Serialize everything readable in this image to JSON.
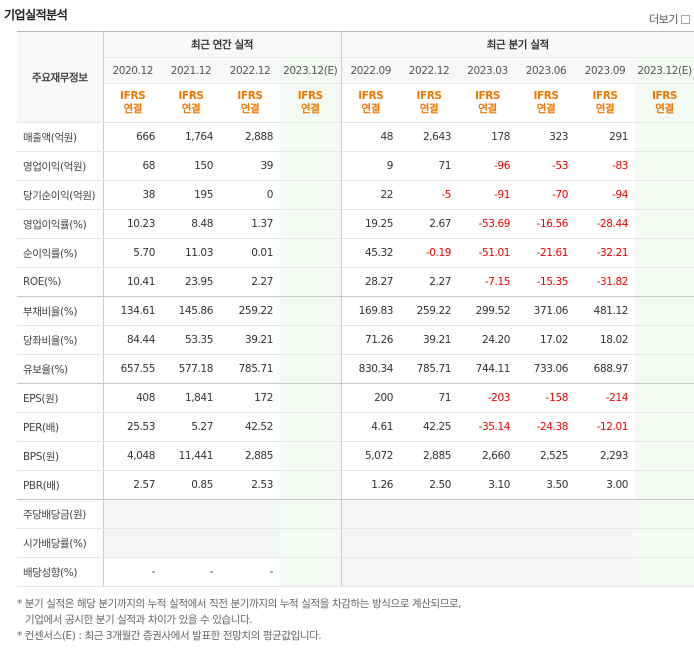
{
  "header": {
    "title": "기업실적분석",
    "more": "더보기"
  },
  "table": {
    "corner": "주요재무정보",
    "groups": [
      "최근 연간 실적",
      "최근 분기 실적"
    ],
    "periods": [
      "2020.12",
      "2021.12",
      "2022.12",
      "2023.12(E)",
      "2022.09",
      "2022.12",
      "2023.03",
      "2023.06",
      "2023.09",
      "2023.12(E)"
    ],
    "standards": [
      [
        "IFRS",
        "연결"
      ],
      [
        "IFRS",
        "연결"
      ],
      [
        "IFRS",
        "연결"
      ],
      [
        "IFRS",
        "연결"
      ],
      [
        "IFRS",
        "연결"
      ],
      [
        "IFRS",
        "연결"
      ],
      [
        "IFRS",
        "연결"
      ],
      [
        "IFRS",
        "연결"
      ],
      [
        "IFRS",
        "연결"
      ],
      [
        "IFRS",
        "연결"
      ]
    ],
    "rows": [
      {
        "label": "매출액(억원)",
        "values": [
          "666",
          "1,764",
          "2,888",
          null,
          "48",
          "2,643",
          "178",
          "323",
          "291",
          null
        ]
      },
      {
        "label": "영업이익(억원)",
        "values": [
          "68",
          "150",
          "39",
          null,
          "9",
          "71",
          "-96",
          "-53",
          "-83",
          null
        ]
      },
      {
        "label": "당기순이익(억원)",
        "values": [
          "38",
          "195",
          "0",
          null,
          "22",
          "-5",
          "-91",
          "-70",
          "-94",
          null
        ]
      },
      {
        "label": "영업이익률(%)",
        "values": [
          "10.23",
          "8.48",
          "1.37",
          null,
          "19.25",
          "2.67",
          "-53.69",
          "-16.56",
          "-28.44",
          null
        ]
      },
      {
        "label": "순이익률(%)",
        "values": [
          "5.70",
          "11.03",
          "0.01",
          null,
          "45.32",
          "-0.19",
          "-51.01",
          "-21.61",
          "-32.21",
          null
        ]
      },
      {
        "label": "ROE(%)",
        "values": [
          "10.41",
          "23.95",
          "2.27",
          null,
          "28.27",
          "2.27",
          "-7.15",
          "-15.35",
          "-31.82",
          null
        ]
      },
      {
        "label": "부채비율(%)",
        "values": [
          "134.61",
          "145.86",
          "259.22",
          null,
          "169.83",
          "259.22",
          "299.52",
          "371.06",
          "481.12",
          null
        ]
      },
      {
        "label": "당좌비율(%)",
        "values": [
          "84.44",
          "53.35",
          "39.21",
          null,
          "71.26",
          "39.21",
          "24.20",
          "17.02",
          "18.02",
          null
        ]
      },
      {
        "label": "유보율(%)",
        "values": [
          "657.55",
          "577.18",
          "785.71",
          null,
          "830.34",
          "785.71",
          "744.11",
          "733.06",
          "688.97",
          null
        ]
      },
      {
        "label": "EPS(원)",
        "values": [
          "408",
          "1,841",
          "172",
          null,
          "200",
          "71",
          "-203",
          "-158",
          "-214",
          null
        ]
      },
      {
        "label": "PER(배)",
        "values": [
          "25.53",
          "5.27",
          "42.52",
          null,
          "4.61",
          "42.25",
          "-35.14",
          "-24.38",
          "-12.01",
          null
        ]
      },
      {
        "label": "BPS(원)",
        "values": [
          "4,048",
          "11,441",
          "2,885",
          null,
          "5,072",
          "2,885",
          "2,660",
          "2,525",
          "2,293",
          null
        ]
      },
      {
        "label": "PBR(배)",
        "values": [
          "2.57",
          "0.85",
          "2.53",
          null,
          "1.26",
          "2.50",
          "3.10",
          "3.50",
          "3.00",
          null
        ]
      },
      {
        "label": "주당배당금(원)",
        "values": [
          null,
          null,
          null,
          null,
          null,
          null,
          null,
          null,
          null,
          null
        ]
      },
      {
        "label": "시가배당률(%)",
        "values": [
          null,
          null,
          null,
          null,
          null,
          null,
          null,
          null,
          null,
          null
        ]
      },
      {
        "label": "배당성향(%)",
        "values": [
          "-",
          "-",
          "-",
          null,
          null,
          null,
          null,
          null,
          null,
          null
        ]
      }
    ]
  },
  "notes": [
    "* 분기 실적은 해당 분기까지의 누적 실적에서 직전 분기까지의 누적 실적을 차감하는 방식으로 계산되므로,",
    "기업에서 공시한 분기 실적과 차이가 있을 수 있습니다.",
    "* 컨센서스(E) : 최근 3개월간 증권사에서 발표한 전망치의 평균값입니다."
  ]
}
